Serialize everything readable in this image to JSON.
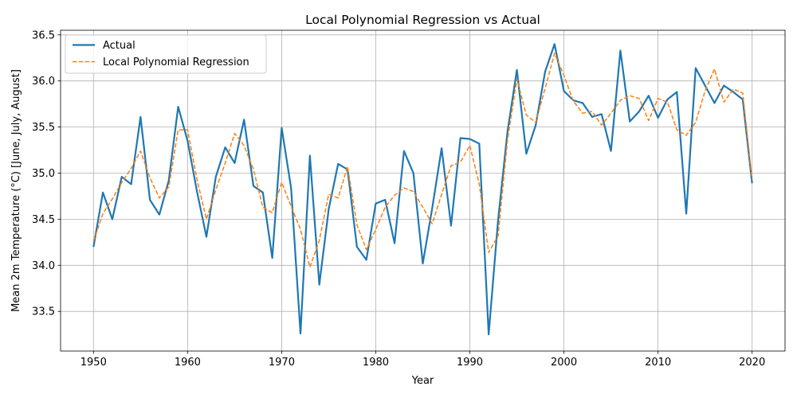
{
  "chart_data": {
    "type": "line",
    "title": "Local Polynomial Regression vs Actual",
    "xlabel": "Year",
    "ylabel": "Mean 2m Temperature (°C) [June, July, August]",
    "xlim": [
      1946.5,
      2023.5
    ],
    "ylim": [
      33.07,
      36.55
    ],
    "xticks": [
      1950,
      1960,
      1970,
      1980,
      1990,
      2000,
      2010,
      2020
    ],
    "yticks": [
      33.5,
      34.0,
      34.5,
      35.0,
      35.5,
      36.0,
      36.5
    ],
    "grid": true,
    "legend_position": "top-left",
    "x": [
      1950,
      1951,
      1952,
      1953,
      1954,
      1955,
      1956,
      1957,
      1958,
      1959,
      1960,
      1961,
      1962,
      1963,
      1964,
      1965,
      1966,
      1967,
      1968,
      1969,
      1970,
      1971,
      1972,
      1973,
      1974,
      1975,
      1976,
      1977,
      1978,
      1979,
      1980,
      1981,
      1982,
      1983,
      1984,
      1985,
      1986,
      1987,
      1988,
      1989,
      1990,
      1991,
      1992,
      1993,
      1994,
      1995,
      1996,
      1997,
      1998,
      1999,
      2000,
      2001,
      2002,
      2003,
      2004,
      2005,
      2006,
      2007,
      2008,
      2009,
      2010,
      2011,
      2012,
      2013,
      2014,
      2015,
      2016,
      2017,
      2018,
      2019,
      2020
    ],
    "series": [
      {
        "name": "Actual",
        "color": "#1f77b4",
        "style": "solid",
        "values": [
          34.2,
          34.79,
          34.5,
          34.96,
          34.88,
          35.61,
          34.71,
          34.55,
          34.92,
          35.72,
          35.35,
          34.8,
          34.31,
          34.96,
          35.28,
          35.11,
          35.58,
          34.86,
          34.79,
          34.08,
          35.49,
          34.84,
          33.26,
          35.19,
          33.79,
          34.61,
          35.1,
          35.04,
          34.2,
          34.06,
          34.67,
          34.71,
          34.24,
          35.24,
          35.0,
          34.02,
          34.62,
          35.27,
          34.43,
          35.38,
          35.37,
          35.32,
          33.25,
          34.49,
          35.45,
          36.12,
          35.21,
          35.52,
          36.1,
          36.4,
          35.89,
          35.79,
          35.76,
          35.61,
          35.64,
          35.24,
          36.33,
          35.56,
          35.67,
          35.84,
          35.6,
          35.8,
          35.88,
          34.56,
          36.14,
          35.95,
          35.76,
          35.95,
          35.88,
          35.8,
          34.89
        ]
      },
      {
        "name": "Local Polynomial Regression",
        "color": "#ff7f0e",
        "style": "dashed",
        "values": [
          34.26,
          34.56,
          34.72,
          34.9,
          35.05,
          35.24,
          34.95,
          34.73,
          34.85,
          35.47,
          35.47,
          34.93,
          34.5,
          34.82,
          35.11,
          35.43,
          35.3,
          35.04,
          34.63,
          34.57,
          34.9,
          34.64,
          34.39,
          33.98,
          34.27,
          34.77,
          34.73,
          35.07,
          34.44,
          34.17,
          34.39,
          34.63,
          34.76,
          34.84,
          34.8,
          34.63,
          34.45,
          34.77,
          35.08,
          35.12,
          35.3,
          34.88,
          34.14,
          34.32,
          35.36,
          36.02,
          35.63,
          35.55,
          35.92,
          36.3,
          36.06,
          35.78,
          35.65,
          35.67,
          35.52,
          35.65,
          35.79,
          35.84,
          35.81,
          35.57,
          35.81,
          35.77,
          35.47,
          35.41,
          35.55,
          35.89,
          36.13,
          35.77,
          35.91,
          35.87,
          34.93
        ]
      }
    ]
  }
}
